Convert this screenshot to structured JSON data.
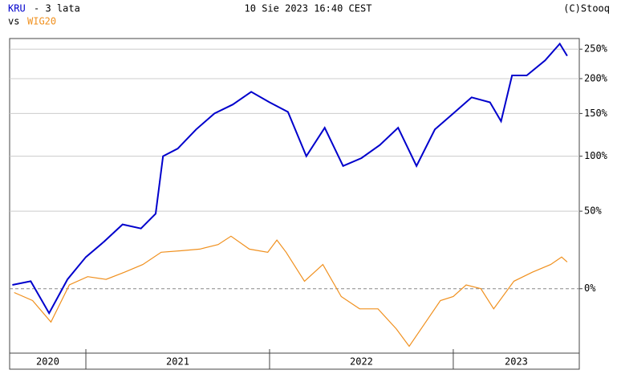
{
  "header": {
    "period": "- 3 lata",
    "date": "10 Sie 2023 16:40 CEST",
    "source": "(C)Stooq",
    "vs": "vs"
  },
  "chart_data": {
    "type": "line",
    "yscale": "log1p",
    "grid": true,
    "ylim": [
      -28.6,
      270
    ],
    "xlim": [
      2020.585,
      2023.686
    ],
    "yticks": [
      {
        "value": 0,
        "label": "0%"
      },
      {
        "value": 50,
        "label": "50%"
      },
      {
        "value": 100,
        "label": "100%"
      },
      {
        "value": 150,
        "label": "150%"
      },
      {
        "value": 200,
        "label": "200%"
      },
      {
        "value": 250,
        "label": "250%"
      }
    ],
    "xticks": [
      2021,
      2022,
      2023
    ],
    "year_labels": [
      "2020",
      "2021",
      "2022",
      "2023"
    ],
    "series": [
      {
        "name": "KRU",
        "color": "#0000cc",
        "x": [
          2020.6,
          2020.7,
          2020.8,
          2020.9,
          2021.0,
          2021.1,
          2021.2,
          2021.3,
          2021.38,
          2021.42,
          2021.5,
          2021.6,
          2021.7,
          2021.8,
          2021.9,
          2022.0,
          2022.1,
          2022.2,
          2022.3,
          2022.4,
          2022.5,
          2022.6,
          2022.7,
          2022.8,
          2022.9,
          2023.0,
          2023.1,
          2023.2,
          2023.26,
          2023.32,
          2023.4,
          2023.5,
          2023.58,
          2023.62
        ],
        "values": [
          2,
          4,
          -12,
          5,
          18,
          28,
          40,
          37,
          48,
          100,
          108,
          130,
          150,
          162,
          180,
          165,
          152,
          100,
          132,
          90,
          98,
          112,
          132,
          90,
          130,
          150,
          172,
          165,
          140,
          205,
          205,
          230,
          260,
          238
        ]
      },
      {
        "name": "WIG20",
        "color": "#f0901e",
        "x": [
          2020.61,
          2020.71,
          2020.81,
          2020.91,
          2021.01,
          2021.11,
          2021.21,
          2021.31,
          2021.41,
          2021.52,
          2021.62,
          2021.72,
          2021.79,
          2021.89,
          2021.99,
          2022.04,
          2022.09,
          2022.19,
          2022.29,
          2022.39,
          2022.49,
          2022.59,
          2022.69,
          2022.76,
          2022.85,
          2022.93,
          2023.0,
          2023.07,
          2023.15,
          2023.22,
          2023.33,
          2023.43,
          2023.53,
          2023.59,
          2023.62
        ],
        "values": [
          -2,
          -6,
          -16,
          2,
          6.5,
          5,
          9,
          13.5,
          21,
          22,
          23,
          26,
          31.6,
          23,
          21,
          29,
          21,
          4,
          13.5,
          -4,
          -10,
          -10,
          -19,
          -26,
          -16,
          -6,
          -4,
          2,
          0,
          -10,
          4,
          9,
          13.5,
          18,
          15
        ]
      }
    ]
  }
}
